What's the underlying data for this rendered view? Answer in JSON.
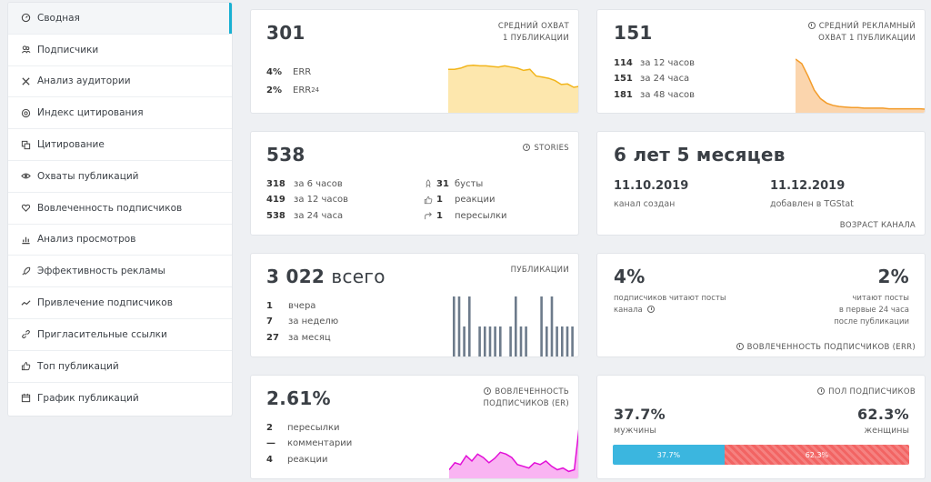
{
  "sidebar": {
    "items": [
      {
        "label": "Сводная",
        "icon": "dashboard-icon",
        "active": true
      },
      {
        "label": "Подписчики",
        "icon": "users-icon"
      },
      {
        "label": "Анализ аудитории",
        "icon": "x-icon"
      },
      {
        "label": "Индекс цитирования",
        "icon": "at-icon"
      },
      {
        "label": "Цитирование",
        "icon": "quote-icon"
      },
      {
        "label": "Охваты публикаций",
        "icon": "eye-icon"
      },
      {
        "label": "Вовлеченность подписчиков",
        "icon": "heart-icon"
      },
      {
        "label": "Анализ просмотров",
        "icon": "bar-chart-icon"
      },
      {
        "label": "Эффективность рекламы",
        "icon": "rocket-icon"
      },
      {
        "label": "Привлечение подписчиков",
        "icon": "trend-icon"
      },
      {
        "label": "Пригласительные ссылки",
        "icon": "link-icon"
      },
      {
        "label": "Топ публикаций",
        "icon": "thumbs-up-icon"
      },
      {
        "label": "График публикаций",
        "icon": "calendar-icon"
      }
    ]
  },
  "reach": {
    "value": "301",
    "caption_line1": "СРЕДНИЙ ОХВАТ",
    "caption_line2": "1 ПУБЛИКАЦИИ",
    "err_value": "4%",
    "err_label": "ERR",
    "err24_value": "2%",
    "err24_label": "ERR",
    "err24_sub": "24",
    "sparkline": [
      82,
      82,
      84,
      88,
      89,
      88,
      88,
      87,
      86,
      88,
      86,
      84,
      80,
      82,
      70,
      68,
      66,
      62,
      55,
      56,
      50,
      52
    ]
  },
  "ad_reach": {
    "value": "151",
    "caption_line1": "СРЕДНИЙ РЕКЛАМНЫЙ",
    "caption_line2": "ОХВАТ 1 ПУБЛИКАЦИИ",
    "rows": [
      {
        "n": "114",
        "label": "за 12 часов"
      },
      {
        "n": "151",
        "label": "за 24 часа"
      },
      {
        "n": "181",
        "label": "за 48 часов"
      }
    ],
    "sparkline": [
      100,
      92,
      70,
      45,
      30,
      22,
      18,
      16,
      15,
      14,
      14,
      13,
      13,
      13,
      13,
      12,
      12,
      12,
      12,
      12,
      12,
      11
    ]
  },
  "stories": {
    "value": "538",
    "caption": "STORIES",
    "rows_left": [
      {
        "n": "318",
        "label": "за 6 часов"
      },
      {
        "n": "419",
        "label": "за 12 часов"
      },
      {
        "n": "538",
        "label": "за 24 часа"
      }
    ],
    "rows_right": [
      {
        "n": "31",
        "label": "бусты",
        "icon": "boost-icon"
      },
      {
        "n": "1",
        "label": "реакции",
        "icon": "like-icon"
      },
      {
        "n": "1",
        "label": "пересылки",
        "icon": "share-icon"
      }
    ]
  },
  "age": {
    "value": "6 лет 5 месяцев",
    "created_date": "11.10.2019",
    "created_label": "канал создан",
    "added_date": "11.12.2019",
    "added_label": "добавлен в TGStat",
    "caption": "ВОЗРАСТ КАНАЛА"
  },
  "posts": {
    "value": "3 022",
    "value_suffix": "всего",
    "caption": "ПУБЛИКАЦИИ",
    "rows": [
      {
        "n": "1",
        "label": "вчера"
      },
      {
        "n": "7",
        "label": "за неделю"
      },
      {
        "n": "27",
        "label": "за месяц"
      }
    ],
    "bars": [
      2,
      2,
      1,
      2,
      0,
      1,
      1,
      1,
      1,
      1,
      0,
      1,
      2,
      1,
      1,
      0,
      0,
      2,
      1,
      2,
      1,
      1,
      1,
      1
    ]
  },
  "err": {
    "left_value": "4%",
    "left_text_line1": "подписчиков читают посты",
    "left_text_line2": "канала",
    "right_value": "2%",
    "right_text_line1": "читают посты",
    "right_text_line2": "в первые 24 часа",
    "right_text_line3": "после публикации",
    "caption": "ВОВЛЕЧЕННОСТЬ ПОДПИСЧИКОВ (ERR)"
  },
  "engagement": {
    "value": "2.61%",
    "caption_line1": "ВОВЛЕЧЕННОСТЬ",
    "caption_line2": "ПОДПИСЧИКОВ (ER)",
    "rows": [
      {
        "n": "2",
        "label": "пересылки"
      },
      {
        "n": "—",
        "label": "комментарии"
      },
      {
        "n": "4",
        "label": "реакции"
      }
    ],
    "sparkline": [
      12,
      20,
      18,
      28,
      22,
      30,
      26,
      20,
      25,
      32,
      30,
      26,
      18,
      16,
      14,
      20,
      18,
      22,
      16,
      12,
      14,
      10,
      12,
      70
    ]
  },
  "gender": {
    "caption": "ПОЛ ПОДПИСЧИКОВ",
    "male_value": "37.7%",
    "male_label": "мужчины",
    "female_value": "62.3%",
    "female_label": "женщины",
    "male_bar": "37.7%",
    "female_bar": "62.3%",
    "male_share": 37.7,
    "colors": {
      "male": "#3bb6df",
      "female": "#f26463"
    }
  }
}
